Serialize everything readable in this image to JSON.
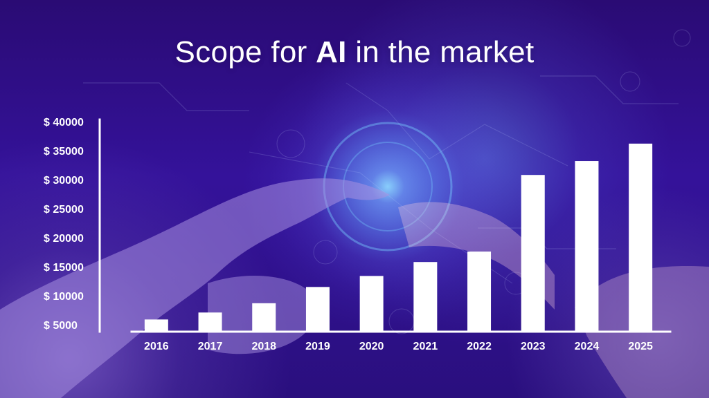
{
  "title": {
    "before": "Scope for ",
    "emphasis": "AI",
    "after": " in the market"
  },
  "colors": {
    "background": "#2a0e72",
    "accent": "#ffffff",
    "glow": "#8fd8ff"
  },
  "chart_data": {
    "type": "bar",
    "categories": [
      "2016",
      "2017",
      "2018",
      "2019",
      "2020",
      "2021",
      "2022",
      "2023",
      "2024",
      "2025"
    ],
    "values": [
      7100,
      8300,
      9900,
      12700,
      14600,
      17000,
      18800,
      32000,
      34400,
      37400
    ],
    "tick_values": [
      5000,
      10000,
      15000,
      20000,
      25000,
      30000,
      35000,
      40000
    ],
    "tick_labels": [
      "$ 5000",
      "$ 10000",
      "$ 15000",
      "$ 20000",
      "$ 25000",
      "$ 30000",
      "$ 35000",
      "$ 40000"
    ],
    "title": "Scope for AI in the market",
    "xlabel": "",
    "ylabel": "",
    "ylim": [
      5000,
      40000
    ],
    "grid": false,
    "legend": "none"
  }
}
